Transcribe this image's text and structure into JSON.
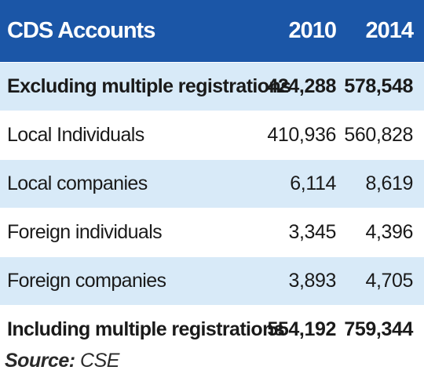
{
  "chart_data": {
    "type": "table",
    "columns": [
      "CDS Accounts",
      "2010",
      "2014"
    ],
    "rows": [
      {
        "label": "Excluding multiple registrations",
        "v2010": "424,288",
        "v2014": "578,548",
        "bold": true
      },
      {
        "label": "Local Individuals",
        "v2010": "410,936",
        "v2014": "560,828",
        "bold": false
      },
      {
        "label": "Local companies",
        "v2010": "6,114",
        "v2014": "8,619",
        "bold": false
      },
      {
        "label": "Foreign individuals",
        "v2010": "3,345",
        "v2014": "4,396",
        "bold": false
      },
      {
        "label": "Foreign companies",
        "v2010": "3,893",
        "v2014": "4,705",
        "bold": false
      },
      {
        "label": "Including multiple registrations",
        "v2010": "554,192",
        "v2014": "759,344",
        "bold": true
      }
    ]
  },
  "source": {
    "label": "Source:",
    "value": "CSE"
  },
  "colors": {
    "header_bg": "#1b56a7",
    "alt_row_bg": "#d8eaf8",
    "plain_row_bg": "#ffffff"
  }
}
